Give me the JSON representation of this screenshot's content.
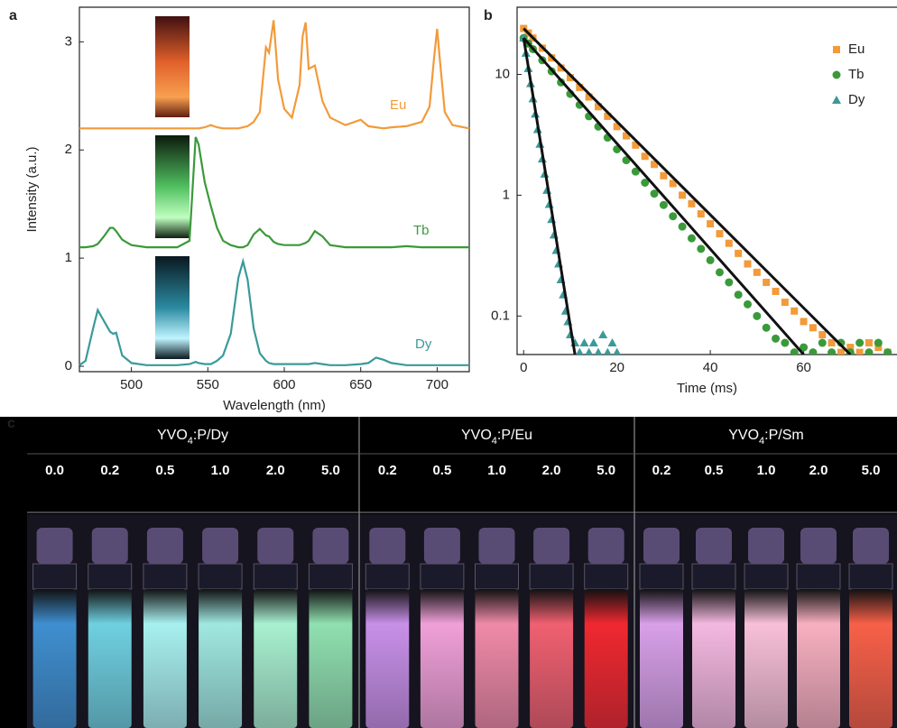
{
  "chart_data": [
    {
      "type": "line",
      "panel_label": "a",
      "x_label": "Wavelength (nm)",
      "y_label": "Intensity (a.u.)",
      "xlim": [
        466,
        721
      ],
      "xticks": [
        500,
        550,
        600,
        650,
        700
      ],
      "ylim": [
        -0.05,
        3.32
      ],
      "yticks": [
        0,
        1,
        2,
        3
      ],
      "x": [
        466,
        470,
        475,
        478,
        482,
        486,
        488,
        490,
        494,
        500,
        510,
        520,
        530,
        538,
        542,
        544,
        548,
        552,
        556,
        560,
        565,
        570,
        573,
        576,
        580,
        584,
        588,
        590,
        593,
        596,
        600,
        605,
        610,
        612,
        614,
        616,
        620,
        625,
        630,
        640,
        650,
        655,
        660,
        665,
        670,
        680,
        690,
        695,
        698,
        700,
        702,
        705,
        710,
        721
      ],
      "series": [
        {
          "name": "Eu",
          "color": "#f39a3a",
          "values": [
            2.2,
            2.2,
            2.2,
            2.2,
            2.2,
            2.2,
            2.2,
            2.2,
            2.2,
            2.2,
            2.2,
            2.2,
            2.2,
            2.2,
            2.2,
            2.2,
            2.21,
            2.23,
            2.21,
            2.2,
            2.2,
            2.2,
            2.21,
            2.22,
            2.26,
            2.35,
            2.95,
            2.9,
            3.2,
            2.65,
            2.38,
            2.3,
            2.6,
            3.05,
            3.18,
            2.75,
            2.78,
            2.45,
            2.3,
            2.23,
            2.28,
            2.22,
            2.21,
            2.2,
            2.21,
            2.22,
            2.26,
            2.4,
            2.85,
            3.12,
            2.8,
            2.35,
            2.23,
            2.2
          ]
        },
        {
          "name": "Tb",
          "color": "#3a9a3a",
          "values": [
            1.1,
            1.1,
            1.11,
            1.13,
            1.2,
            1.28,
            1.28,
            1.25,
            1.17,
            1.12,
            1.1,
            1.1,
            1.1,
            1.16,
            2.12,
            2.05,
            1.7,
            1.48,
            1.28,
            1.16,
            1.12,
            1.1,
            1.1,
            1.12,
            1.22,
            1.27,
            1.21,
            1.2,
            1.15,
            1.13,
            1.12,
            1.12,
            1.12,
            1.13,
            1.14,
            1.16,
            1.25,
            1.2,
            1.12,
            1.1,
            1.1,
            1.1,
            1.1,
            1.1,
            1.1,
            1.11,
            1.1,
            1.1,
            1.1,
            1.1,
            1.1,
            1.1,
            1.1,
            1.1
          ]
        },
        {
          "name": "Dy",
          "color": "#3a9a9a",
          "values": [
            0.01,
            0.05,
            0.35,
            0.52,
            0.42,
            0.32,
            0.3,
            0.31,
            0.1,
            0.03,
            0.01,
            0.01,
            0.01,
            0.02,
            0.04,
            0.03,
            0.02,
            0.02,
            0.05,
            0.1,
            0.3,
            0.82,
            0.97,
            0.8,
            0.35,
            0.12,
            0.05,
            0.03,
            0.02,
            0.02,
            0.02,
            0.02,
            0.02,
            0.02,
            0.02,
            0.02,
            0.03,
            0.02,
            0.01,
            0.01,
            0.02,
            0.03,
            0.08,
            0.06,
            0.03,
            0.01,
            0.01,
            0.01,
            0.01,
            0.01,
            0.01,
            0.01,
            0.01,
            0.01
          ]
        }
      ]
    },
    {
      "type": "scatter",
      "panel_label": "b",
      "x_label": "Time (ms)",
      "log_y": true,
      "xlim": [
        -1.4,
        80
      ],
      "xticks": [
        0,
        20,
        40,
        60
      ],
      "ylim": [
        0.048,
        36
      ],
      "yticks": [
        0.1,
        1,
        10
      ],
      "series": [
        {
          "name": "Eu",
          "color": "#f39a3a",
          "marker": "square",
          "x": [
            0,
            1,
            2,
            4,
            6,
            8,
            10,
            12,
            14,
            16,
            18,
            20,
            22,
            24,
            26,
            28,
            30,
            32,
            34,
            36,
            38,
            40,
            42,
            44,
            46,
            48,
            50,
            52,
            54,
            56,
            58,
            60,
            62,
            64,
            66,
            68,
            70,
            72,
            74,
            76,
            78
          ],
          "values": [
            24,
            22,
            20,
            16.5,
            13.7,
            11.3,
            9.4,
            7.8,
            6.5,
            5.4,
            4.5,
            3.7,
            3.1,
            2.6,
            2.1,
            1.8,
            1.45,
            1.25,
            1.0,
            0.85,
            0.7,
            0.58,
            0.48,
            0.4,
            0.33,
            0.27,
            0.23,
            0.19,
            0.16,
            0.13,
            0.11,
            0.09,
            0.08,
            0.07,
            0.06,
            0.05,
            0.055,
            0.05,
            0.06,
            0.055,
            0.05
          ]
        },
        {
          "name": "Tb",
          "color": "#3a9a3a",
          "marker": "circle",
          "x": [
            0,
            1,
            2,
            4,
            6,
            8,
            10,
            12,
            14,
            16,
            18,
            20,
            22,
            24,
            26,
            28,
            30,
            32,
            34,
            36,
            38,
            40,
            42,
            44,
            46,
            48,
            50,
            52,
            54,
            56,
            58,
            60,
            62,
            64,
            66,
            68,
            70,
            72,
            74,
            76,
            78
          ],
          "values": [
            20,
            18,
            16.2,
            13.1,
            10.6,
            8.6,
            6.9,
            5.6,
            4.5,
            3.7,
            3.0,
            2.4,
            1.95,
            1.57,
            1.27,
            1.03,
            0.83,
            0.67,
            0.55,
            0.44,
            0.36,
            0.29,
            0.23,
            0.19,
            0.15,
            0.125,
            0.1,
            0.08,
            0.065,
            0.06,
            0.05,
            0.055,
            0.05,
            0.06,
            0.05,
            0.06,
            0.05,
            0.06,
            0.05,
            0.06,
            0.05
          ]
        },
        {
          "name": "Dy",
          "color": "#3a9a9a",
          "marker": "triangle",
          "x": [
            0,
            0.5,
            1,
            1.5,
            2,
            2.5,
            3,
            3.5,
            4,
            4.5,
            5,
            5.5,
            6,
            6.5,
            7,
            7.5,
            8,
            8.5,
            9,
            9.5,
            10,
            11,
            12,
            13,
            14,
            15,
            16,
            17,
            18,
            19,
            20
          ],
          "values": [
            20,
            15,
            11.2,
            8.4,
            6.3,
            4.7,
            3.5,
            2.65,
            2.0,
            1.5,
            1.1,
            0.84,
            0.63,
            0.47,
            0.35,
            0.27,
            0.2,
            0.15,
            0.11,
            0.09,
            0.07,
            0.06,
            0.05,
            0.06,
            0.05,
            0.06,
            0.05,
            0.07,
            0.05,
            0.06,
            0.05
          ]
        }
      ],
      "fits": [
        {
          "x": [
            0,
            70
          ],
          "values": [
            24,
            0.048
          ]
        },
        {
          "x": [
            0,
            60
          ],
          "values": [
            20,
            0.048
          ]
        },
        {
          "x": [
            0,
            11
          ],
          "values": [
            20,
            0.048
          ]
        }
      ]
    }
  ],
  "panel_c": {
    "label": "c",
    "groups": [
      {
        "name": [
          "YVO",
          "4",
          ":P/Dy"
        ],
        "concentrations": [
          "0.0",
          "0.2",
          "0.5",
          "1.0",
          "2.0",
          "5.0"
        ]
      },
      {
        "name": [
          "YVO",
          "4",
          ":P/Eu"
        ],
        "concentrations": [
          "0.2",
          "0.5",
          "1.0",
          "2.0",
          "5.0"
        ]
      },
      {
        "name": [
          "YVO",
          "4",
          ":P/Sm"
        ],
        "concentrations": [
          "0.2",
          "0.5",
          "1.0",
          "2.0",
          "5.0"
        ]
      }
    ]
  }
}
